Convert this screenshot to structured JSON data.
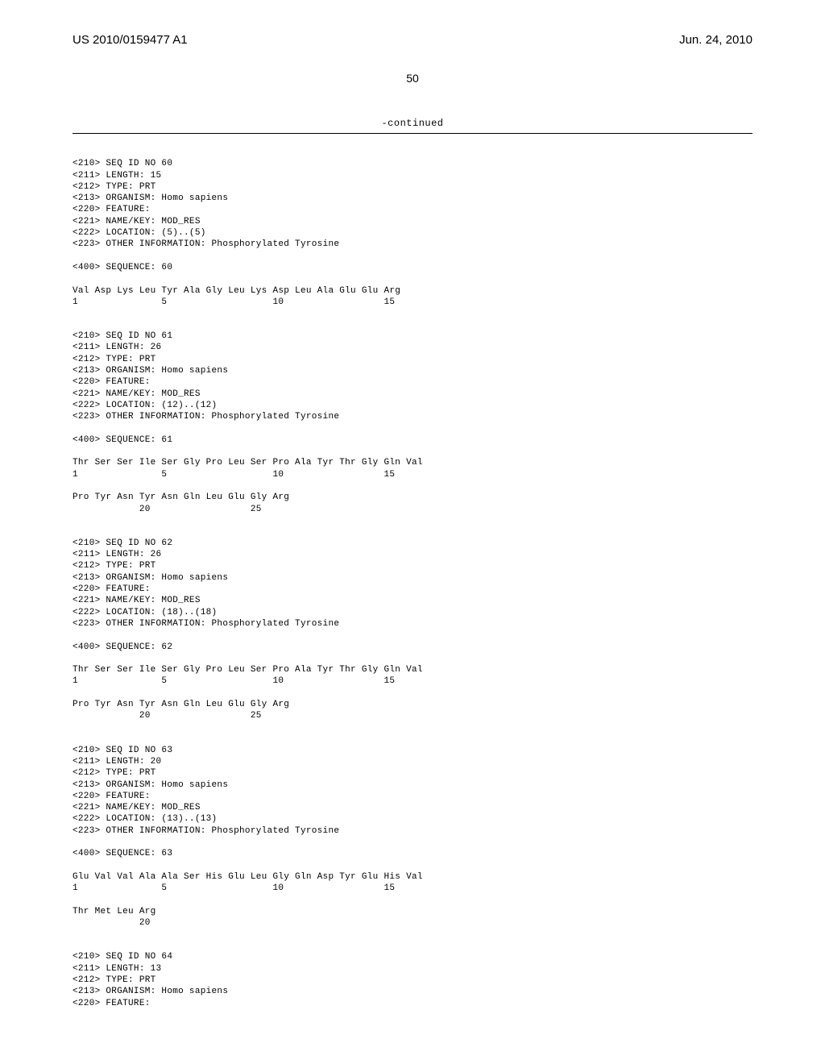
{
  "header": {
    "publication_number": "US 2010/0159477 A1",
    "publication_date": "Jun. 24, 2010",
    "page_number": "50",
    "continued_label": "-continued"
  },
  "blocks": [
    {
      "lines": [
        "<210> SEQ ID NO 60",
        "<211> LENGTH: 15",
        "<212> TYPE: PRT",
        "<213> ORGANISM: Homo sapiens",
        "<220> FEATURE:",
        "<221> NAME/KEY: MOD_RES",
        "<222> LOCATION: (5)..(5)",
        "<223> OTHER INFORMATION: Phosphorylated Tyrosine",
        "",
        "<400> SEQUENCE: 60",
        "",
        "Val Asp Lys Leu Tyr Ala Gly Leu Lys Asp Leu Ala Glu Glu Arg",
        "1               5                   10                  15"
      ]
    },
    {
      "lines": [
        "<210> SEQ ID NO 61",
        "<211> LENGTH: 26",
        "<212> TYPE: PRT",
        "<213> ORGANISM: Homo sapiens",
        "<220> FEATURE:",
        "<221> NAME/KEY: MOD_RES",
        "<222> LOCATION: (12)..(12)",
        "<223> OTHER INFORMATION: Phosphorylated Tyrosine",
        "",
        "<400> SEQUENCE: 61",
        "",
        "Thr Ser Ser Ile Ser Gly Pro Leu Ser Pro Ala Tyr Thr Gly Gln Val",
        "1               5                   10                  15",
        "",
        "Pro Tyr Asn Tyr Asn Gln Leu Glu Gly Arg",
        "            20                  25"
      ]
    },
    {
      "lines": [
        "<210> SEQ ID NO 62",
        "<211> LENGTH: 26",
        "<212> TYPE: PRT",
        "<213> ORGANISM: Homo sapiens",
        "<220> FEATURE:",
        "<221> NAME/KEY: MOD_RES",
        "<222> LOCATION: (18)..(18)",
        "<223> OTHER INFORMATION: Phosphorylated Tyrosine",
        "",
        "<400> SEQUENCE: 62",
        "",
        "Thr Ser Ser Ile Ser Gly Pro Leu Ser Pro Ala Tyr Thr Gly Gln Val",
        "1               5                   10                  15",
        "",
        "Pro Tyr Asn Tyr Asn Gln Leu Glu Gly Arg",
        "            20                  25"
      ]
    },
    {
      "lines": [
        "<210> SEQ ID NO 63",
        "<211> LENGTH: 20",
        "<212> TYPE: PRT",
        "<213> ORGANISM: Homo sapiens",
        "<220> FEATURE:",
        "<221> NAME/KEY: MOD_RES",
        "<222> LOCATION: (13)..(13)",
        "<223> OTHER INFORMATION: Phosphorylated Tyrosine",
        "",
        "<400> SEQUENCE: 63",
        "",
        "Glu Val Val Ala Ala Ser His Glu Leu Gly Gln Asp Tyr Glu His Val",
        "1               5                   10                  15",
        "",
        "Thr Met Leu Arg",
        "            20"
      ]
    },
    {
      "lines": [
        "<210> SEQ ID NO 64",
        "<211> LENGTH: 13",
        "<212> TYPE: PRT",
        "<213> ORGANISM: Homo sapiens",
        "<220> FEATURE:"
      ]
    }
  ]
}
